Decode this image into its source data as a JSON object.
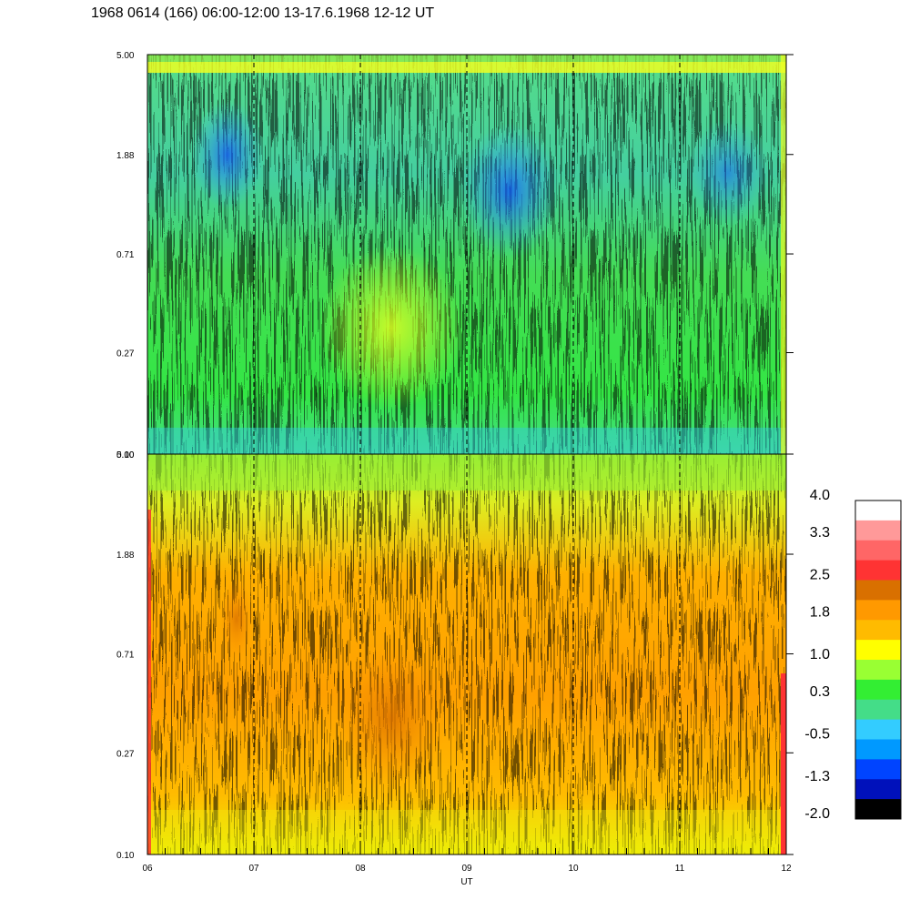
{
  "title": "1968 0614 (166) 06:00-12:00 13-17.6.1968  12-12 UT",
  "chart_data": {
    "type": "heatmap",
    "panels": [
      {
        "name": "upper",
        "yticks": [
          "5.00",
          "1.88",
          "0.71",
          "0.27",
          "0.10"
        ],
        "ylim": [
          0.1,
          5.0
        ],
        "yscale": "log",
        "dominant_level": 0.3,
        "notes": "mostly green/cyan with blue streaks near 07 and 09-10 UT at 1-3 (y), yellow band near top"
      },
      {
        "name": "lower",
        "yticks": [
          "5.00",
          "1.88",
          "0.71",
          "0.27",
          "0.10"
        ],
        "ylim": [
          0.1,
          5.0
        ],
        "yscale": "log",
        "dominant_level": 1.8,
        "notes": "mostly orange/yellow with green near top, darker orange near 08 UT at 0.27-0.71"
      }
    ],
    "xticks": [
      "06",
      "07",
      "08",
      "09",
      "10",
      "11",
      "12"
    ],
    "xlim": [
      6,
      12
    ],
    "xlabel": "UT",
    "hour_markers_dashed": [
      7,
      8,
      9,
      10,
      11,
      12
    ],
    "colorbar": {
      "labels": [
        "4.0",
        "3.3",
        "2.5",
        "1.8",
        "1.0",
        "0.3",
        "-0.5",
        "-1.3",
        "-2.0"
      ],
      "range": [
        -2.0,
        4.0
      ],
      "colors_top_to_bottom": [
        "#ffffff",
        "#ff9999",
        "#ff6666",
        "#ff3333",
        "#d97000",
        "#ff9900",
        "#ffbb00",
        "#ffff00",
        "#99ff33",
        "#33ee33",
        "#44dd88",
        "#33ccff",
        "#0099ff",
        "#0044ff",
        "#0011bb",
        "#000000"
      ]
    }
  }
}
